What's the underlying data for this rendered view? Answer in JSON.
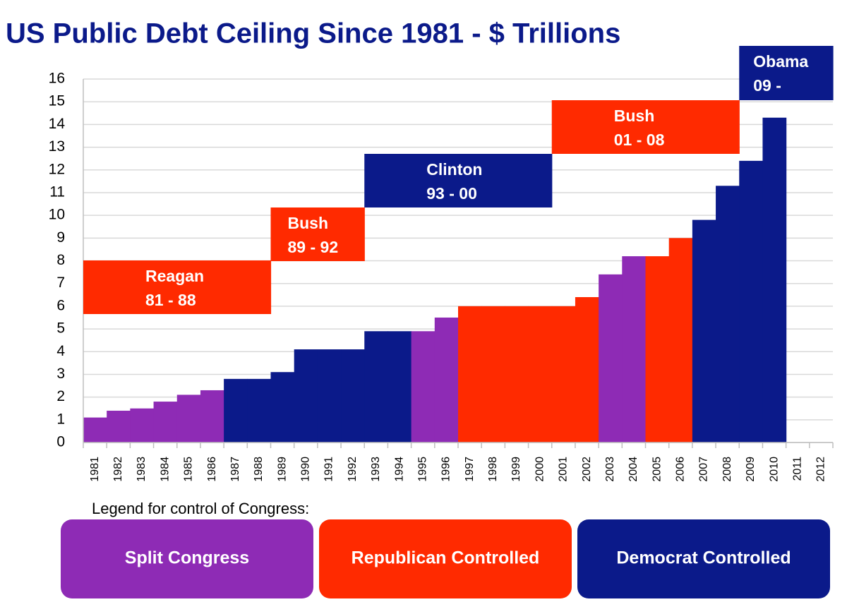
{
  "chart_data": {
    "type": "bar",
    "title": "US Public Debt Ceiling Since 1981 - $ Trillions",
    "categories": [
      "1981",
      "1982",
      "1983",
      "1984",
      "1985",
      "1986",
      "1987",
      "1988",
      "1989",
      "1990",
      "1991",
      "1992",
      "1993",
      "1994",
      "1995",
      "1996",
      "1997",
      "1998",
      "1999",
      "2000",
      "2001",
      "2002",
      "2003",
      "2004",
      "2005",
      "2006",
      "2007",
      "2008",
      "2009",
      "2010",
      "2011",
      "2012"
    ],
    "values": [
      1.1,
      1.4,
      1.5,
      1.8,
      2.1,
      2.3,
      2.8,
      2.8,
      3.1,
      4.1,
      4.1,
      4.1,
      4.9,
      4.9,
      4.9,
      5.5,
      6.0,
      6.0,
      6.0,
      6.0,
      6.0,
      6.4,
      7.4,
      8.2,
      8.2,
      9.0,
      9.8,
      11.3,
      12.4,
      14.3,
      null,
      null
    ],
    "colors": [
      "#8e2bb5",
      "#8e2bb5",
      "#8e2bb5",
      "#8e2bb5",
      "#8e2bb5",
      "#8e2bb5",
      "#0b1a8a",
      "#0b1a8a",
      "#0b1a8a",
      "#0b1a8a",
      "#0b1a8a",
      "#0b1a8a",
      "#0b1a8a",
      "#0b1a8a",
      "#8e2bb5",
      "#8e2bb5",
      "#ff2a00",
      "#ff2a00",
      "#ff2a00",
      "#ff2a00",
      "#ff2a00",
      "#ff2a00",
      "#8e2bb5",
      "#8e2bb5",
      "#ff2a00",
      "#ff2a00",
      "#0b1a8a",
      "#0b1a8a",
      "#0b1a8a",
      "#0b1a8a",
      "#0b1a8a",
      "#0b1a8a"
    ],
    "ylim": [
      0,
      16
    ],
    "yticks": [
      0,
      1,
      2,
      3,
      4,
      5,
      6,
      7,
      8,
      9,
      10,
      11,
      12,
      13,
      14,
      15,
      16
    ],
    "grid": true,
    "annotations": [
      {
        "name": "Reagan",
        "years": "81 - 88",
        "color": "#ff2a00"
      },
      {
        "name": "Bush",
        "years": "89 - 92",
        "color": "#ff2a00"
      },
      {
        "name": "Clinton",
        "years": "93 - 00",
        "color": "#0b1a8a"
      },
      {
        "name": "Bush",
        "years": "01 - 08",
        "color": "#ff2a00"
      },
      {
        "name": "Obama",
        "years": "09 -",
        "color": "#0b1a8a"
      }
    ],
    "legend": {
      "title": "Legend for control of Congress:",
      "entries": [
        {
          "name": "Split Congress",
          "color": "#8e2bb5"
        },
        {
          "name": "Republican Controlled",
          "color": "#ff2a00"
        },
        {
          "name": "Democrat Controlled",
          "color": "#0b1a8a"
        }
      ]
    }
  }
}
